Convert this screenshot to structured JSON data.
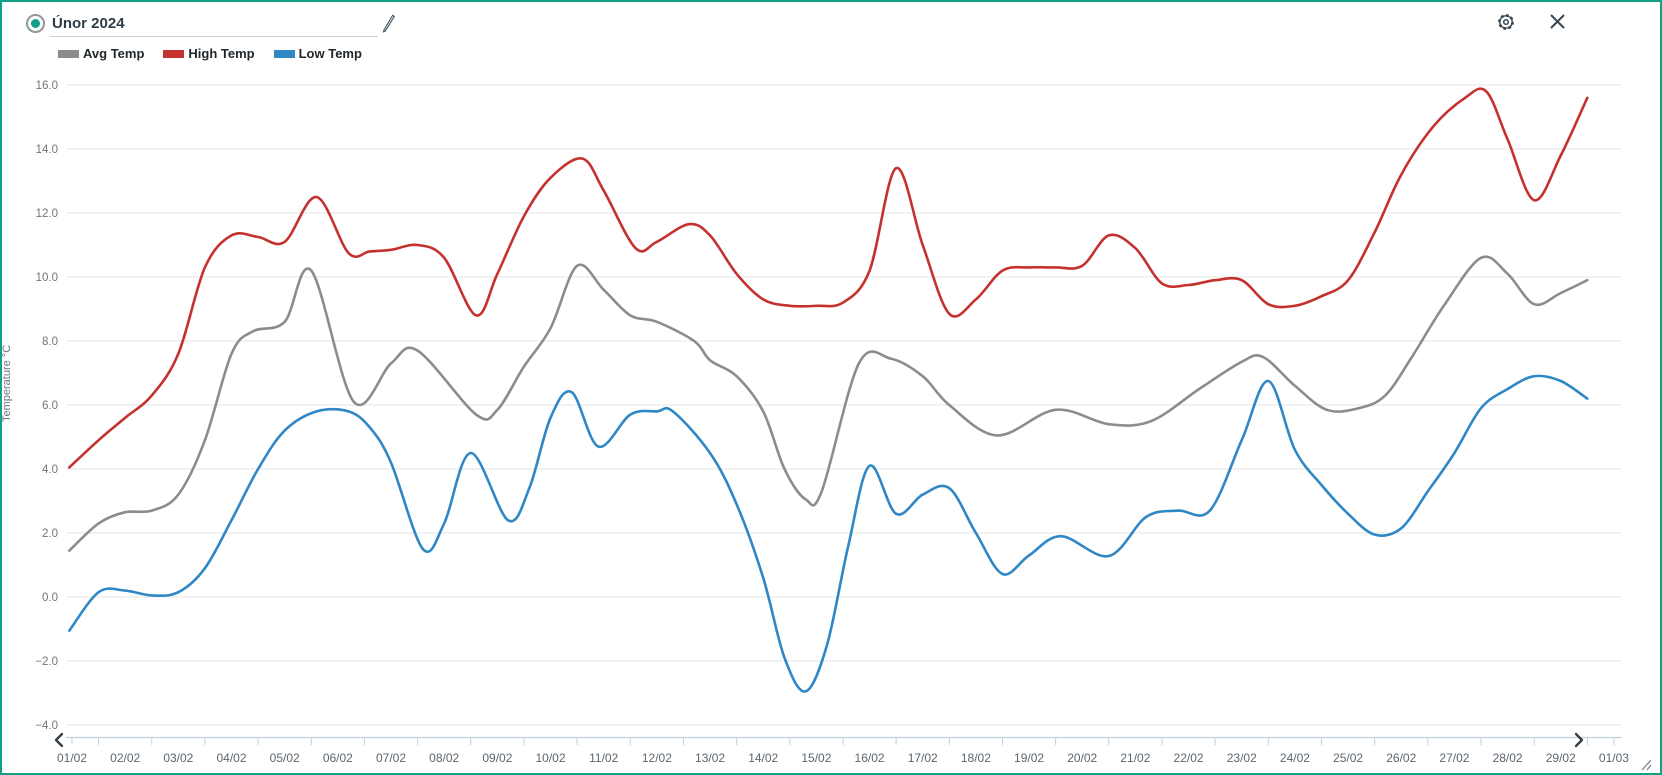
{
  "window": {
    "border_color": "#12a086",
    "background": "#ffffff"
  },
  "header": {
    "title_value": "Únor 2024",
    "radio_icon": "radio-selected",
    "edit_icon": "pencil",
    "settings_icon": "gear",
    "close_icon": "close"
  },
  "nav": {
    "prev_icon": "chevron-left",
    "next_icon": "chevron-right",
    "resize_icon": "resize-handle"
  },
  "chart_data": {
    "type": "line",
    "title": "Únor 2024",
    "xlabel": "",
    "ylabel": "Temperature °C",
    "ylim": [
      -4,
      16
    ],
    "y_tick_labels": [
      "16.0",
      "14.0",
      "12.0",
      "10.0",
      "8.0",
      "6.0",
      "4.0",
      "2.0",
      "0.0",
      "−2.0",
      "−4.0"
    ],
    "x_tick_labels": [
      "01/02",
      "02/02",
      "03/02",
      "04/02",
      "05/02",
      "06/02",
      "07/02",
      "08/02",
      "09/02",
      "10/02",
      "11/02",
      "12/02",
      "13/02",
      "14/02",
      "15/02",
      "16/02",
      "17/02",
      "18/02",
      "19/02",
      "20/02",
      "21/02",
      "22/02",
      "23/02",
      "24/02",
      "25/02",
      "26/02",
      "27/02",
      "28/02",
      "29/02",
      "01/03"
    ],
    "grid": "horizontal-only",
    "legend_position": "top-left",
    "axis_color": "#c3d0da",
    "grid_color": "#e4e4e4",
    "tick_label_color": "#6d757b",
    "series": [
      {
        "name": "Avg Temp",
        "color": "#8c8c8c",
        "points": [
          [
            0.95,
            1.45
          ],
          [
            1.5,
            2.3
          ],
          [
            2,
            2.65
          ],
          [
            2.5,
            2.7
          ],
          [
            3,
            3.2
          ],
          [
            3.5,
            4.9
          ],
          [
            4,
            7.6
          ],
          [
            4.4,
            8.3
          ],
          [
            5,
            8.6
          ],
          [
            5.5,
            10.2
          ],
          [
            6.3,
            6.1
          ],
          [
            7,
            7.3
          ],
          [
            7.5,
            7.7
          ],
          [
            8.6,
            5.7
          ],
          [
            9,
            5.85
          ],
          [
            9.5,
            7.2
          ],
          [
            10,
            8.4
          ],
          [
            10.5,
            10.35
          ],
          [
            11,
            9.6
          ],
          [
            11.5,
            8.8
          ],
          [
            12,
            8.6
          ],
          [
            12.7,
            8.0
          ],
          [
            13,
            7.4
          ],
          [
            13.5,
            6.9
          ],
          [
            14,
            5.8
          ],
          [
            14.4,
            4.0
          ],
          [
            14.8,
            3.05
          ],
          [
            15.1,
            3.3
          ],
          [
            15.8,
            7.3
          ],
          [
            16.4,
            7.45
          ],
          [
            17,
            6.9
          ],
          [
            17.5,
            6.0
          ],
          [
            18.4,
            5.05
          ],
          [
            19.5,
            5.85
          ],
          [
            20.5,
            5.4
          ],
          [
            21.3,
            5.5
          ],
          [
            22.2,
            6.5
          ],
          [
            23,
            7.35
          ],
          [
            23.4,
            7.5
          ],
          [
            24,
            6.6
          ],
          [
            24.6,
            5.85
          ],
          [
            25.2,
            5.9
          ],
          [
            25.7,
            6.3
          ],
          [
            26.2,
            7.5
          ],
          [
            26.8,
            9.1
          ],
          [
            27.5,
            10.6
          ],
          [
            28,
            10.1
          ],
          [
            28.5,
            9.15
          ],
          [
            29,
            9.5
          ],
          [
            29.5,
            9.9
          ]
        ]
      },
      {
        "name": "High Temp",
        "color": "#c5312d",
        "points": [
          [
            0.95,
            4.05
          ],
          [
            1.5,
            4.9
          ],
          [
            2,
            5.6
          ],
          [
            2.5,
            6.3
          ],
          [
            3,
            7.6
          ],
          [
            3.5,
            10.3
          ],
          [
            4,
            11.3
          ],
          [
            4.5,
            11.25
          ],
          [
            5,
            11.1
          ],
          [
            5.6,
            12.5
          ],
          [
            6.2,
            10.75
          ],
          [
            6.6,
            10.8
          ],
          [
            7,
            10.85
          ],
          [
            7.5,
            11.0
          ],
          [
            8,
            10.6
          ],
          [
            8.6,
            8.8
          ],
          [
            9,
            10.1
          ],
          [
            9.5,
            11.9
          ],
          [
            10,
            13.1
          ],
          [
            10.6,
            13.7
          ],
          [
            11,
            12.7
          ],
          [
            11.6,
            10.9
          ],
          [
            12,
            11.1
          ],
          [
            12.6,
            11.65
          ],
          [
            13,
            11.3
          ],
          [
            13.5,
            10.1
          ],
          [
            14,
            9.3
          ],
          [
            14.5,
            9.1
          ],
          [
            15,
            9.1
          ],
          [
            15.5,
            9.2
          ],
          [
            16,
            10.2
          ],
          [
            16.5,
            13.4
          ],
          [
            17,
            11.0
          ],
          [
            17.5,
            8.85
          ],
          [
            18,
            9.3
          ],
          [
            18.5,
            10.2
          ],
          [
            19,
            10.3
          ],
          [
            19.5,
            10.3
          ],
          [
            20,
            10.35
          ],
          [
            20.5,
            11.3
          ],
          [
            21,
            10.9
          ],
          [
            21.5,
            9.8
          ],
          [
            22,
            9.75
          ],
          [
            22.5,
            9.9
          ],
          [
            23,
            9.9
          ],
          [
            23.5,
            9.15
          ],
          [
            24,
            9.1
          ],
          [
            24.5,
            9.4
          ],
          [
            25,
            9.9
          ],
          [
            25.5,
            11.4
          ],
          [
            26,
            13.2
          ],
          [
            26.6,
            14.7
          ],
          [
            27.2,
            15.6
          ],
          [
            27.6,
            15.8
          ],
          [
            28,
            14.3
          ],
          [
            28.5,
            12.4
          ],
          [
            29,
            13.8
          ],
          [
            29.5,
            15.6
          ]
        ]
      },
      {
        "name": "Low Temp",
        "color": "#2f87c5",
        "points": [
          [
            0.95,
            -1.05
          ],
          [
            1.5,
            0.15
          ],
          [
            2,
            0.2
          ],
          [
            2.5,
            0.05
          ],
          [
            3,
            0.15
          ],
          [
            3.5,
            0.9
          ],
          [
            4,
            2.4
          ],
          [
            4.5,
            4.0
          ],
          [
            5,
            5.2
          ],
          [
            5.6,
            5.8
          ],
          [
            6.2,
            5.8
          ],
          [
            6.6,
            5.3
          ],
          [
            7,
            4.2
          ],
          [
            7.6,
            1.5
          ],
          [
            8,
            2.3
          ],
          [
            8.5,
            4.5
          ],
          [
            9.2,
            2.4
          ],
          [
            9.6,
            3.4
          ],
          [
            10,
            5.6
          ],
          [
            10.4,
            6.4
          ],
          [
            10.9,
            4.7
          ],
          [
            11.5,
            5.7
          ],
          [
            12,
            5.8
          ],
          [
            12.3,
            5.8
          ],
          [
            13,
            4.5
          ],
          [
            13.5,
            2.9
          ],
          [
            14,
            0.6
          ],
          [
            14.4,
            -1.9
          ],
          [
            14.8,
            -2.95
          ],
          [
            15.2,
            -1.5
          ],
          [
            15.6,
            1.6
          ],
          [
            16,
            4.1
          ],
          [
            16.5,
            2.6
          ],
          [
            17,
            3.2
          ],
          [
            17.5,
            3.4
          ],
          [
            18,
            2.0
          ],
          [
            18.5,
            0.72
          ],
          [
            19,
            1.3
          ],
          [
            19.6,
            1.9
          ],
          [
            20.5,
            1.28
          ],
          [
            21.2,
            2.5
          ],
          [
            21.8,
            2.7
          ],
          [
            22.4,
            2.7
          ],
          [
            23,
            4.9
          ],
          [
            23.5,
            6.75
          ],
          [
            24,
            4.6
          ],
          [
            24.5,
            3.5
          ],
          [
            25,
            2.6
          ],
          [
            25.5,
            1.95
          ],
          [
            26,
            2.15
          ],
          [
            26.5,
            3.3
          ],
          [
            27,
            4.5
          ],
          [
            27.5,
            5.9
          ],
          [
            28,
            6.5
          ],
          [
            28.5,
            6.9
          ],
          [
            29,
            6.75
          ],
          [
            29.5,
            6.2
          ]
        ]
      }
    ]
  }
}
